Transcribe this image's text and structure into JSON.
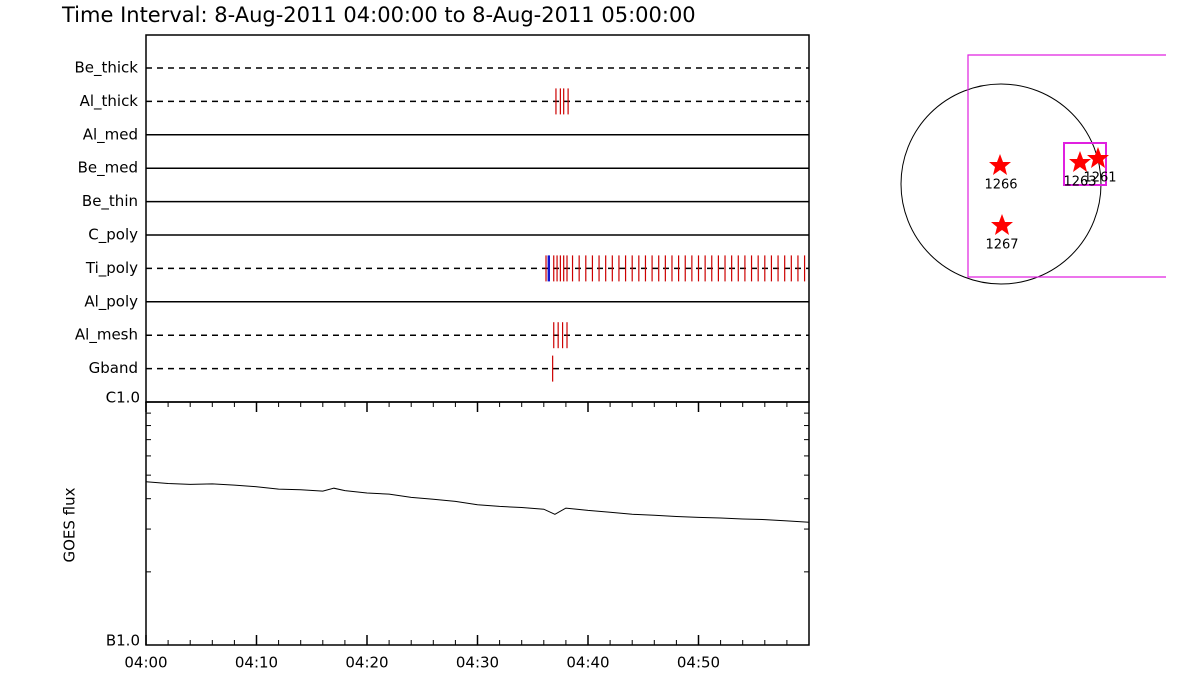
{
  "header": {
    "title": "Time Interval:  8-Aug-2011 04:00:00 to  8-Aug-2011 05:00:00"
  },
  "chart_data": [
    {
      "type": "timeline",
      "categories": [
        "Be_thick",
        "Al_thick",
        "Al_med",
        "Be_med",
        "Be_thin",
        "C_poly",
        "Ti_poly",
        "Al_poly",
        "Al_mesh",
        "Gband"
      ],
      "line_styles": [
        "dashed",
        "dashed",
        "solid",
        "solid",
        "solid",
        "solid",
        "dashed",
        "solid",
        "dashed",
        "dashed"
      ],
      "xlim": [
        0,
        60
      ],
      "series": [
        {
          "color": "#cc0000",
          "events": [
            [],
            [
              37.1,
              37.5,
              37.8,
              38.2
            ],
            [],
            [],
            [],
            [],
            [
              36.2,
              36.9,
              37.2,
              37.5,
              37.8,
              38.1,
              38.6,
              39.2,
              39.8,
              40.4,
              41.0,
              41.6,
              42.2,
              42.8,
              43.4,
              44.0,
              44.6,
              45.2,
              45.8,
              46.4,
              47.0,
              47.6,
              48.2,
              48.8,
              49.4,
              50.0,
              50.6,
              51.2,
              51.8,
              52.4,
              53.0,
              53.6,
              54.2,
              54.8,
              55.4,
              56.0,
              56.6,
              57.2,
              57.8,
              58.4,
              59.0,
              59.6
            ],
            [],
            [
              36.9,
              37.3,
              37.7,
              38.1
            ],
            [
              36.8
            ]
          ]
        },
        {
          "color": "#0000cc",
          "events": [
            [],
            [],
            [],
            [],
            [],
            [],
            [
              36.4,
              36.5
            ],
            [],
            [],
            []
          ]
        }
      ]
    },
    {
      "type": "line",
      "ylabel": "GOES flux",
      "xlim": [
        0,
        60
      ],
      "ylim": [
        1e-07,
        1e-06
      ],
      "ylog": true,
      "xticks": [
        {
          "value": 0,
          "label": "04:00"
        },
        {
          "value": 10,
          "label": "04:10"
        },
        {
          "value": 20,
          "label": "04:20"
        },
        {
          "value": 30,
          "label": "04:30"
        },
        {
          "value": 40,
          "label": "04:40"
        },
        {
          "value": 50,
          "label": "04:50"
        }
      ],
      "xminorticks": [
        2,
        4,
        6,
        8,
        12,
        14,
        16,
        18,
        22,
        24,
        26,
        28,
        32,
        34,
        36,
        38,
        42,
        44,
        46,
        48,
        52,
        54,
        56,
        58
      ],
      "yticks": [
        {
          "value": 1e-07,
          "label": "B1.0"
        },
        {
          "value": 1e-06,
          "label": "C1.0"
        }
      ],
      "yminorticks": [
        2e-07,
        3e-07,
        4e-07,
        5e-07,
        6e-07,
        7e-07,
        8e-07,
        9e-07
      ],
      "color": "#000000",
      "x": [
        0,
        2,
        4,
        6,
        8,
        10,
        12,
        14,
        16,
        17,
        18,
        20,
        22,
        24,
        26,
        28,
        30,
        32,
        34,
        36,
        37,
        38,
        40,
        42,
        44,
        46,
        48,
        50,
        52,
        54,
        56,
        58,
        60
      ],
      "values": [
        4.7e-07,
        4.62e-07,
        4.58e-07,
        4.6e-07,
        4.55e-07,
        4.48e-07,
        4.38e-07,
        4.35e-07,
        4.3e-07,
        4.42e-07,
        4.32e-07,
        4.22e-07,
        4.18e-07,
        4.05e-07,
        3.98e-07,
        3.9e-07,
        3.78e-07,
        3.72e-07,
        3.68e-07,
        3.62e-07,
        3.45e-07,
        3.66e-07,
        3.58e-07,
        3.52e-07,
        3.45e-07,
        3.42e-07,
        3.38e-07,
        3.35e-07,
        3.33e-07,
        3.3e-07,
        3.28e-07,
        3.24e-07,
        3.2e-07
      ]
    }
  ],
  "map": {
    "region_labels": [
      "1266",
      "1267",
      "1263",
      "1261"
    ]
  }
}
